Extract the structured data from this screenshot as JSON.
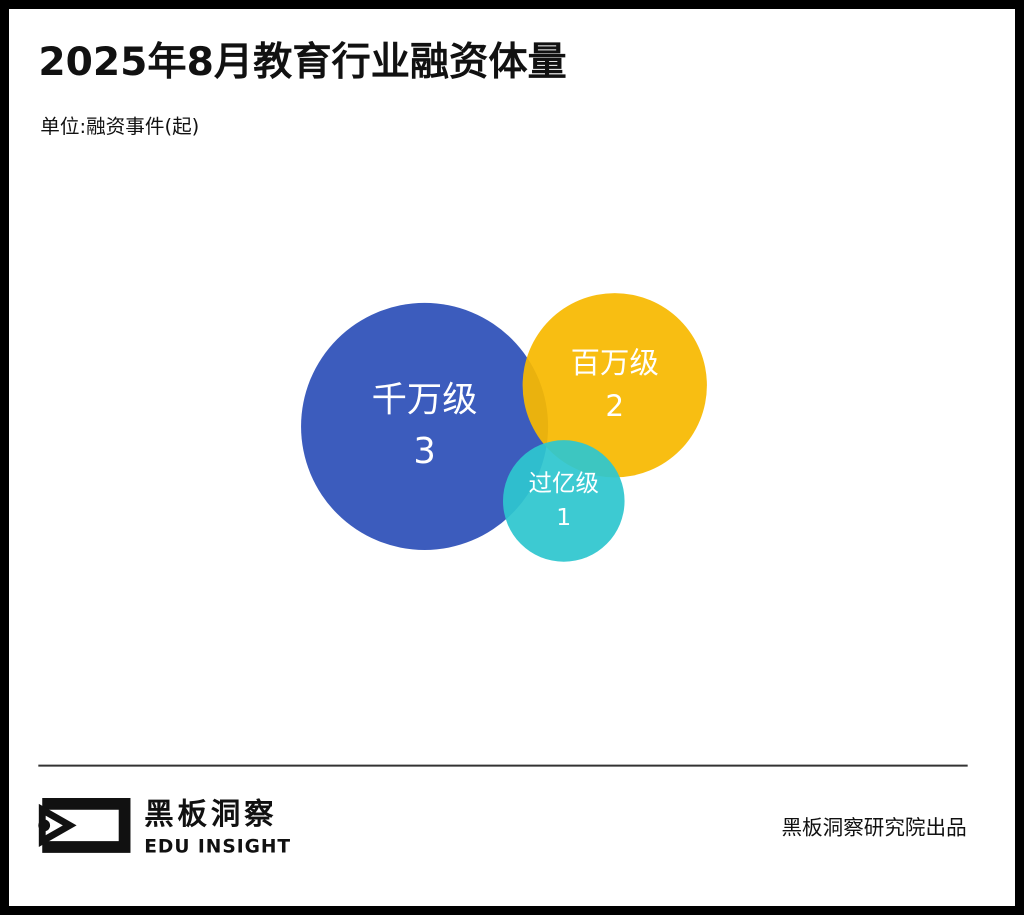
{
  "chart_data": {
    "type": "bubble",
    "title": "2025年8月教育行业融资体量",
    "subtitle": "单位:融资事件(起)",
    "series": [
      {
        "name": "千万级",
        "color": "#2d50b8",
        "values": [
          3
        ]
      },
      {
        "name": "百万级",
        "color": "#f7b900",
        "values": [
          2
        ]
      },
      {
        "name": "过亿级",
        "color": "#2ec6cf",
        "values": [
          1
        ]
      }
    ]
  },
  "footer": {
    "brand": "黑板洞察",
    "brand_en": "EDU INSIGHT",
    "credit": "黑板洞察研究院出品"
  }
}
